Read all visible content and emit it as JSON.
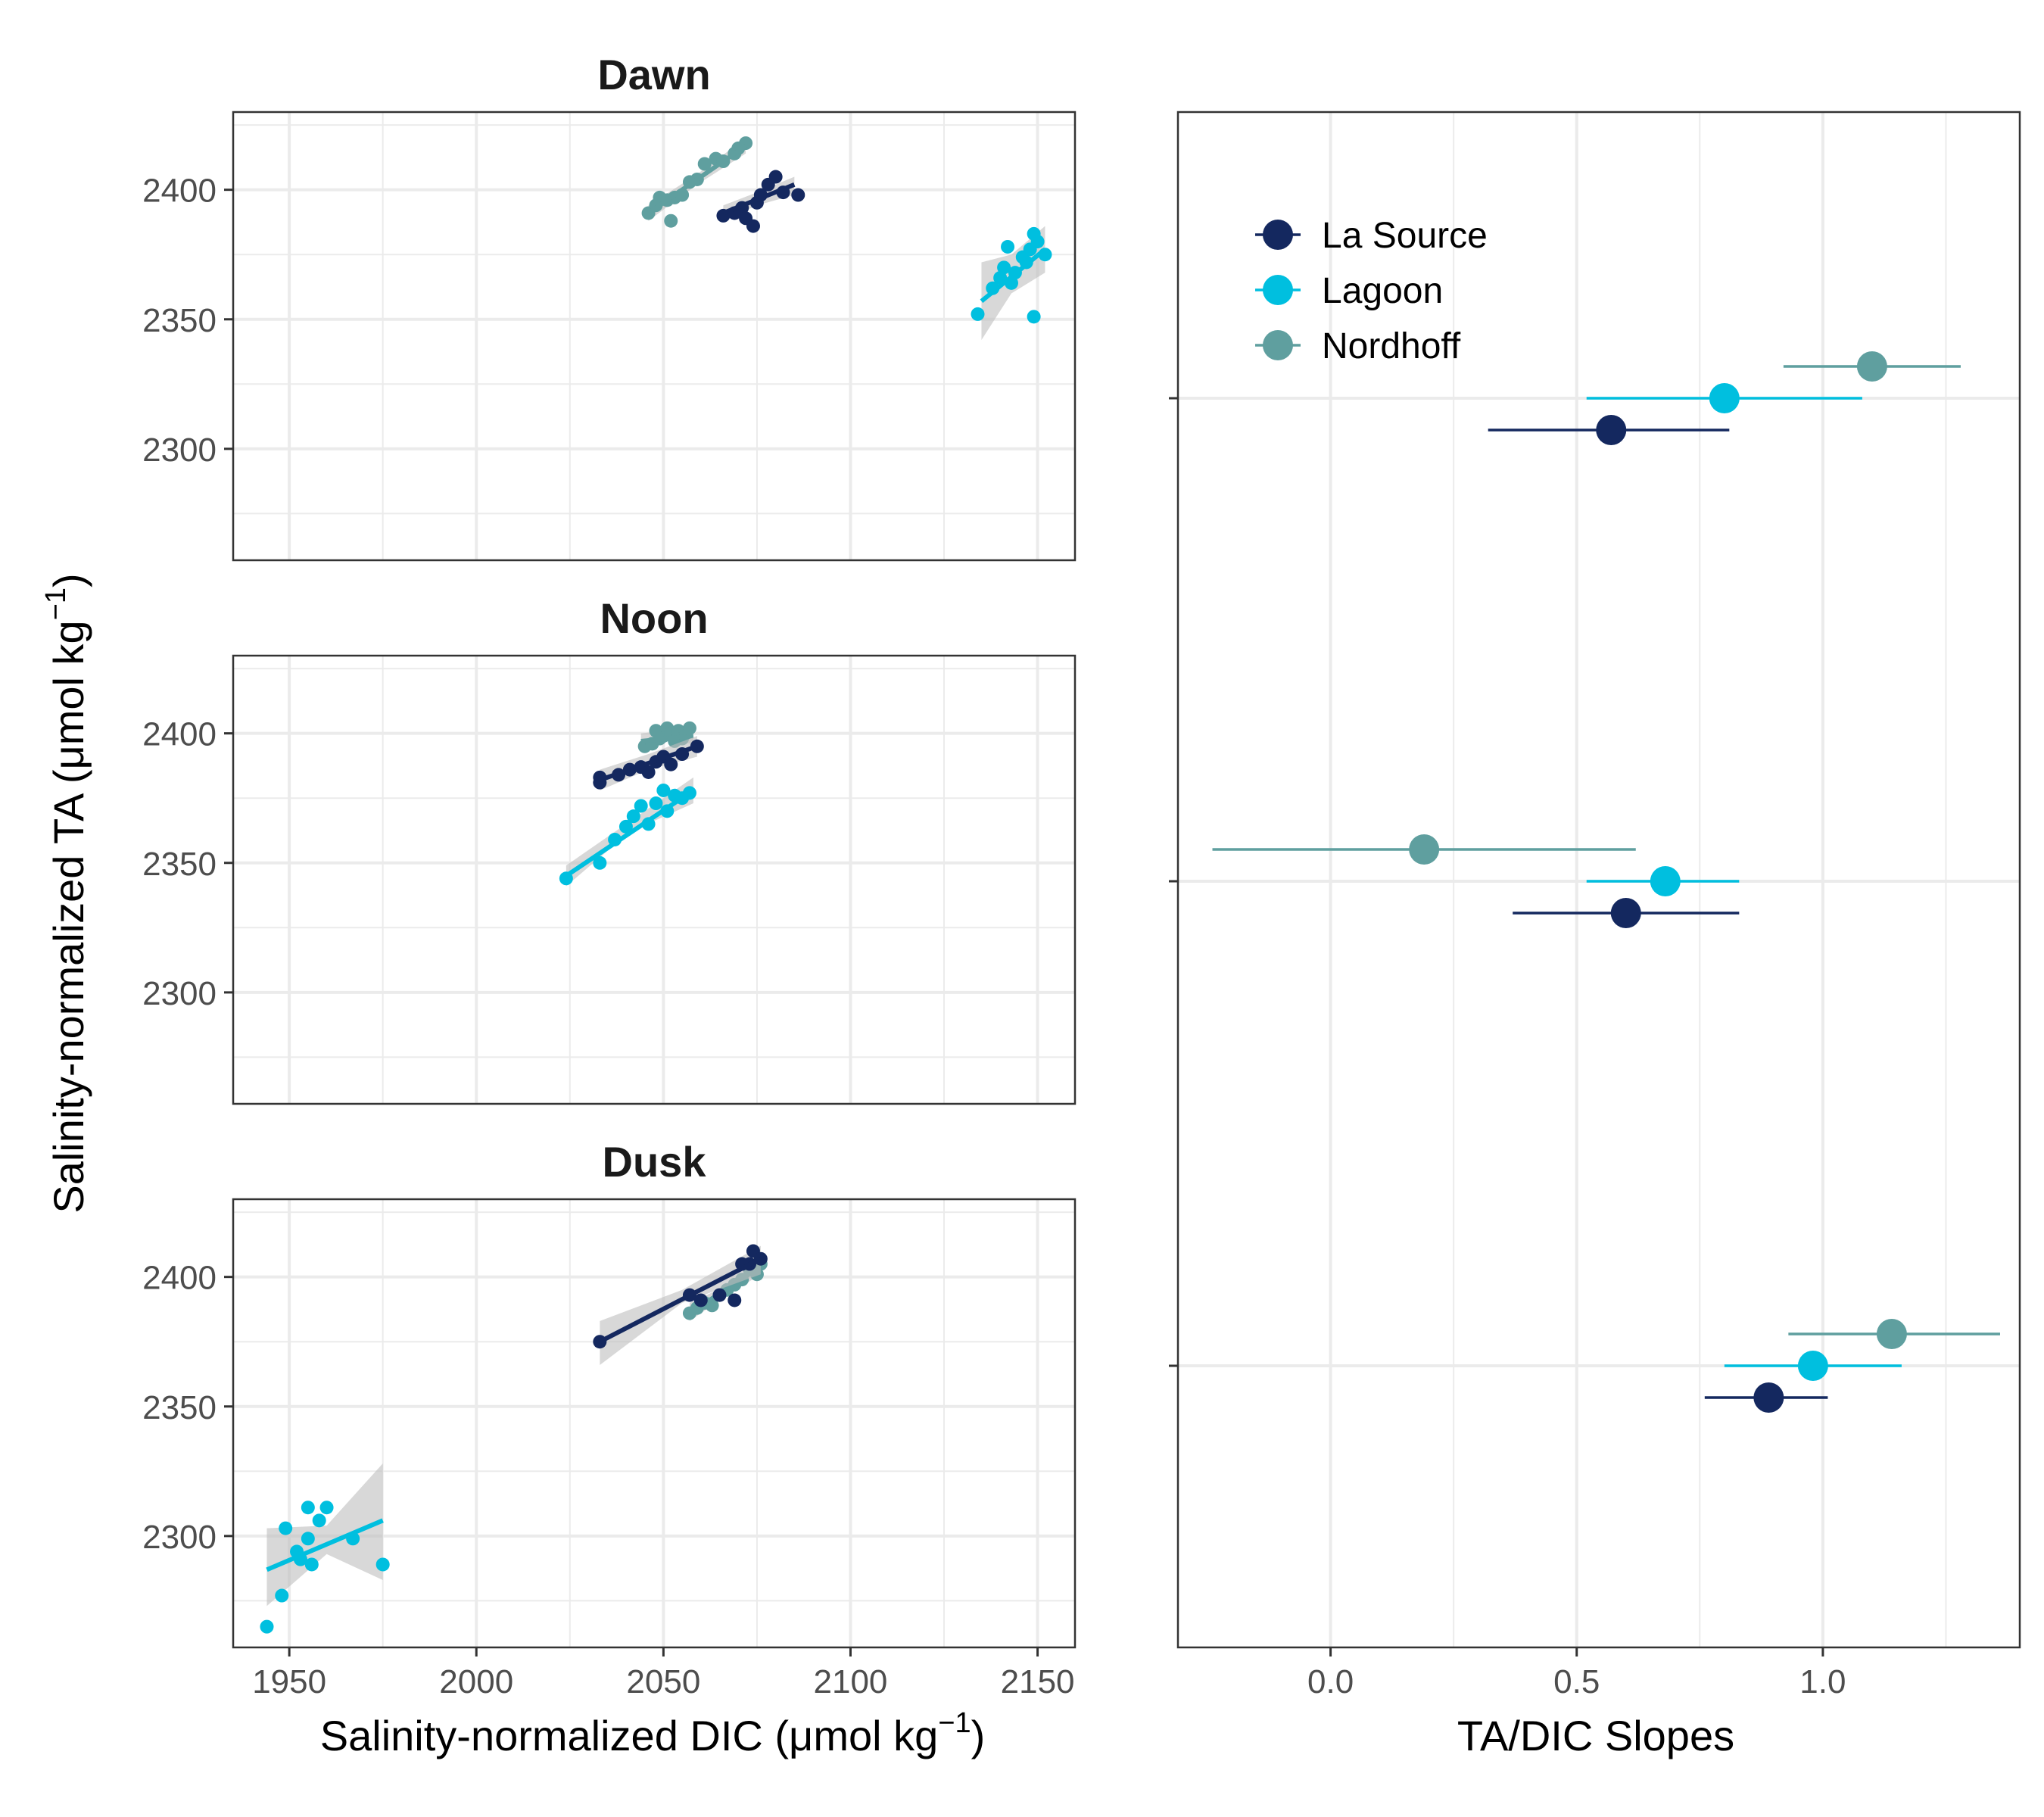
{
  "colors": {
    "la_source": "#14285F",
    "lagoon": "#00BFDF",
    "nordhoff": "#5F9F9F",
    "ribbon": "#BEBEBE",
    "grid": "#EBEBEB",
    "panel_border": "#333333"
  },
  "y_axis_label": "Salinity-normalized TA (μmol kg",
  "y_axis_sup": "−1",
  "y_axis_end": ")",
  "x_axis_label": "Salinity-normalized DIC (μmol kg",
  "x_axis_sup": "−1",
  "x_axis_end": ")",
  "slope_axis_label": "TA/DIC Slopes",
  "chart_data": [
    {
      "type": "scatter",
      "title": "Dawn",
      "xlabel": "Salinity-normalized DIC (μmol kg−1)",
      "ylabel": "Salinity-normalized TA (μmol kg−1)",
      "xlim": [
        1935,
        2160
      ],
      "ylim": [
        2257,
        2430
      ],
      "x_ticks": [
        1950,
        2000,
        2050,
        2100,
        2150
      ],
      "y_ticks": [
        2300,
        2350,
        2400
      ],
      "series": [
        {
          "name": "Nordhoff",
          "color_key": "nordhoff",
          "points": [
            [
              2046,
              2391
            ],
            [
              2048,
              2394
            ],
            [
              2049,
              2397
            ],
            [
              2051,
              2396
            ],
            [
              2052,
              2388
            ],
            [
              2053,
              2397
            ],
            [
              2055,
              2398
            ],
            [
              2057,
              2403
            ],
            [
              2059,
              2404
            ],
            [
              2061,
              2410
            ],
            [
              2064,
              2412
            ],
            [
              2066,
              2411
            ],
            [
              2069,
              2414
            ],
            [
              2070,
              2416
            ],
            [
              2072,
              2418
            ]
          ],
          "fit": [
            [
              2046,
              2391
            ],
            [
              2072,
              2417
            ]
          ],
          "ribbon": [
            [
              2046,
              2388
            ],
            [
              2059,
              2402
            ],
            [
              2072,
              2414
            ],
            [
              2072,
              2420
            ],
            [
              2059,
              2406
            ],
            [
              2046,
              2394
            ]
          ]
        },
        {
          "name": "La Source",
          "color_key": "la_source",
          "points": [
            [
              2066,
              2390
            ],
            [
              2069,
              2391
            ],
            [
              2071,
              2393
            ],
            [
              2072,
              2389
            ],
            [
              2074,
              2386
            ],
            [
              2075,
              2395
            ],
            [
              2076,
              2398
            ],
            [
              2078,
              2402
            ],
            [
              2080,
              2405
            ],
            [
              2082,
              2399
            ],
            [
              2086,
              2398
            ]
          ],
          "fit": [
            [
              2066,
              2391
            ],
            [
              2085,
              2402
            ]
          ],
          "ribbon": [
            [
              2066,
              2388
            ],
            [
              2075,
              2394
            ],
            [
              2085,
              2398
            ],
            [
              2085,
              2405
            ],
            [
              2075,
              2399
            ],
            [
              2066,
              2394
            ]
          ]
        },
        {
          "name": "Lagoon",
          "color_key": "lagoon",
          "points": [
            [
              2134,
              2352
            ],
            [
              2138,
              2362
            ],
            [
              2140,
              2366
            ],
            [
              2141,
              2370
            ],
            [
              2142,
              2378
            ],
            [
              2143,
              2364
            ],
            [
              2144,
              2368
            ],
            [
              2146,
              2374
            ],
            [
              2147,
              2372
            ],
            [
              2148,
              2377
            ],
            [
              2149,
              2383
            ],
            [
              2149,
              2351
            ],
            [
              2150,
              2380
            ],
            [
              2152,
              2375
            ]
          ],
          "fit": [
            [
              2135,
              2357
            ],
            [
              2152,
              2377
            ]
          ],
          "ribbon": [
            [
              2135,
              2342
            ],
            [
              2143,
              2360
            ],
            [
              2152,
              2368
            ],
            [
              2152,
              2386
            ],
            [
              2143,
              2375
            ],
            [
              2135,
              2372
            ]
          ]
        }
      ]
    },
    {
      "type": "scatter",
      "title": "Noon",
      "xlabel": "Salinity-normalized DIC (μmol kg−1)",
      "ylabel": "Salinity-normalized TA (μmol kg−1)",
      "xlim": [
        1935,
        2160
      ],
      "ylim": [
        2257,
        2430
      ],
      "x_ticks": [
        1950,
        2000,
        2050,
        2100,
        2150
      ],
      "y_ticks": [
        2300,
        2350,
        2400
      ],
      "series": [
        {
          "name": "Nordhoff",
          "color_key": "nordhoff",
          "points": [
            [
              2045,
              2395
            ],
            [
              2047,
              2396
            ],
            [
              2048,
              2401
            ],
            [
              2049,
              2398
            ],
            [
              2050,
              2399
            ],
            [
              2051,
              2402
            ],
            [
              2052,
              2400
            ],
            [
              2053,
              2397
            ],
            [
              2054,
              2401
            ],
            [
              2055,
              2398
            ],
            [
              2056,
              2400
            ],
            [
              2057,
              2402
            ]
          ],
          "fit": [
            [
              2044,
              2397
            ],
            [
              2058,
              2399
            ]
          ],
          "ribbon": [
            [
              2044,
              2394
            ],
            [
              2051,
              2397
            ],
            [
              2058,
              2396
            ],
            [
              2058,
              2402
            ],
            [
              2051,
              2401
            ],
            [
              2044,
              2400
            ]
          ]
        },
        {
          "name": "La Source",
          "color_key": "la_source",
          "points": [
            [
              2033,
              2381
            ],
            [
              2033,
              2383
            ],
            [
              2038,
              2384
            ],
            [
              2041,
              2386
            ],
            [
              2044,
              2387
            ],
            [
              2046,
              2385
            ],
            [
              2048,
              2389
            ],
            [
              2050,
              2391
            ],
            [
              2052,
              2388
            ],
            [
              2055,
              2392
            ],
            [
              2059,
              2395
            ]
          ],
          "fit": [
            [
              2033,
              2382
            ],
            [
              2059,
              2395
            ]
          ],
          "ribbon": [
            [
              2033,
              2378
            ],
            [
              2046,
              2386
            ],
            [
              2059,
              2391
            ],
            [
              2059,
              2399
            ],
            [
              2046,
              2392
            ],
            [
              2033,
              2386
            ]
          ]
        },
        {
          "name": "Lagoon",
          "color_key": "lagoon",
          "points": [
            [
              2024,
              2344
            ],
            [
              2033,
              2350
            ],
            [
              2037,
              2359
            ],
            [
              2040,
              2364
            ],
            [
              2042,
              2368
            ],
            [
              2044,
              2372
            ],
            [
              2046,
              2365
            ],
            [
              2048,
              2373
            ],
            [
              2050,
              2378
            ],
            [
              2051,
              2370
            ],
            [
              2053,
              2376
            ],
            [
              2055,
              2375
            ],
            [
              2057,
              2377
            ]
          ],
          "fit": [
            [
              2024,
              2345
            ],
            [
              2058,
              2378
            ]
          ],
          "ribbon": [
            [
              2024,
              2341
            ],
            [
              2041,
              2362
            ],
            [
              2058,
              2373
            ],
            [
              2058,
              2383
            ],
            [
              2041,
              2366
            ],
            [
              2024,
              2349
            ]
          ]
        }
      ]
    },
    {
      "type": "scatter",
      "title": "Dusk",
      "xlabel": "Salinity-normalized DIC (μmol kg−1)",
      "ylabel": "Salinity-normalized TA (μmol kg−1)",
      "xlim": [
        1935,
        2160
      ],
      "ylim": [
        2257,
        2430
      ],
      "x_ticks": [
        1950,
        2000,
        2050,
        2100,
        2150
      ],
      "y_ticks": [
        2300,
        2350,
        2400
      ],
      "series": [
        {
          "name": "Nordhoff",
          "color_key": "nordhoff",
          "points": [
            [
              2057,
              2386
            ],
            [
              2059,
              2388
            ],
            [
              2061,
              2390
            ],
            [
              2063,
              2389
            ],
            [
              2065,
              2393
            ],
            [
              2067,
              2395
            ],
            [
              2069,
              2397
            ],
            [
              2071,
              2399
            ],
            [
              2073,
              2403
            ],
            [
              2075,
              2401
            ],
            [
              2076,
              2405
            ]
          ],
          "fit": [
            [
              2057,
              2386
            ],
            [
              2076,
              2404
            ]
          ],
          "ribbon": [
            [
              2057,
              2383
            ],
            [
              2066,
              2392
            ],
            [
              2076,
              2401
            ],
            [
              2076,
              2407
            ],
            [
              2066,
              2396
            ],
            [
              2057,
              2390
            ]
          ]
        },
        {
          "name": "La Source",
          "color_key": "la_source",
          "points": [
            [
              2033,
              2375
            ],
            [
              2057,
              2393
            ],
            [
              2060,
              2391
            ],
            [
              2065,
              2393
            ],
            [
              2069,
              2391
            ],
            [
              2071,
              2405
            ],
            [
              2073,
              2405
            ],
            [
              2074,
              2410
            ],
            [
              2076,
              2407
            ]
          ],
          "fit": [
            [
              2033,
              2375
            ],
            [
              2076,
              2407
            ]
          ],
          "ribbon": [
            [
              2033,
              2366
            ],
            [
              2055,
              2390
            ],
            [
              2076,
              2401
            ],
            [
              2076,
              2412
            ],
            [
              2055,
              2395
            ],
            [
              2033,
              2383
            ]
          ]
        },
        {
          "name": "Lagoon",
          "color_key": "lagoon",
          "points": [
            [
              1944,
              2265
            ],
            [
              1948,
              2277
            ],
            [
              1949,
              2303
            ],
            [
              1952,
              2294
            ],
            [
              1953,
              2291
            ],
            [
              1955,
              2299
            ],
            [
              1955,
              2311
            ],
            [
              1956,
              2289
            ],
            [
              1958,
              2306
            ],
            [
              1960,
              2311
            ],
            [
              1967,
              2299
            ],
            [
              1975,
              2289
            ]
          ],
          "fit": [
            [
              1944,
              2287
            ],
            [
              1975,
              2306
            ]
          ],
          "ribbon": [
            [
              1944,
              2273
            ],
            [
              1960,
              2293
            ],
            [
              1975,
              2283
            ],
            [
              1975,
              2328
            ],
            [
              1960,
              2304
            ],
            [
              1944,
              2303
            ]
          ]
        }
      ]
    },
    {
      "type": "scatter",
      "title": "",
      "xlabel": "TA/DIC Slopes",
      "xlim": [
        -0.31,
        1.4
      ],
      "x_ticks": [
        0.0,
        0.5,
        1.0
      ],
      "x_tick_labels": [
        "0.0",
        "0.5",
        "1.0"
      ],
      "groups": [
        "Dawn",
        "Noon",
        "Dusk"
      ],
      "series": [
        {
          "name": "La Source",
          "color_key": "la_source",
          "estimates": [
            0.57,
            0.6,
            0.89
          ],
          "lower": [
            0.32,
            0.37,
            0.76
          ],
          "upper": [
            0.81,
            0.83,
            1.01
          ]
        },
        {
          "name": "Lagoon",
          "color_key": "lagoon",
          "estimates": [
            0.8,
            0.68,
            0.98
          ],
          "lower": [
            0.52,
            0.52,
            0.8
          ],
          "upper": [
            1.08,
            0.83,
            1.16
          ]
        },
        {
          "name": "Nordhoff",
          "color_key": "nordhoff",
          "estimates": [
            1.1,
            0.19,
            1.14
          ],
          "lower": [
            0.92,
            -0.24,
            0.93
          ],
          "upper": [
            1.28,
            0.62,
            1.36
          ]
        }
      ],
      "legend": {
        "position": "top-left",
        "entries": [
          "La Source",
          "Lagoon",
          "Nordhoff"
        ]
      }
    }
  ]
}
